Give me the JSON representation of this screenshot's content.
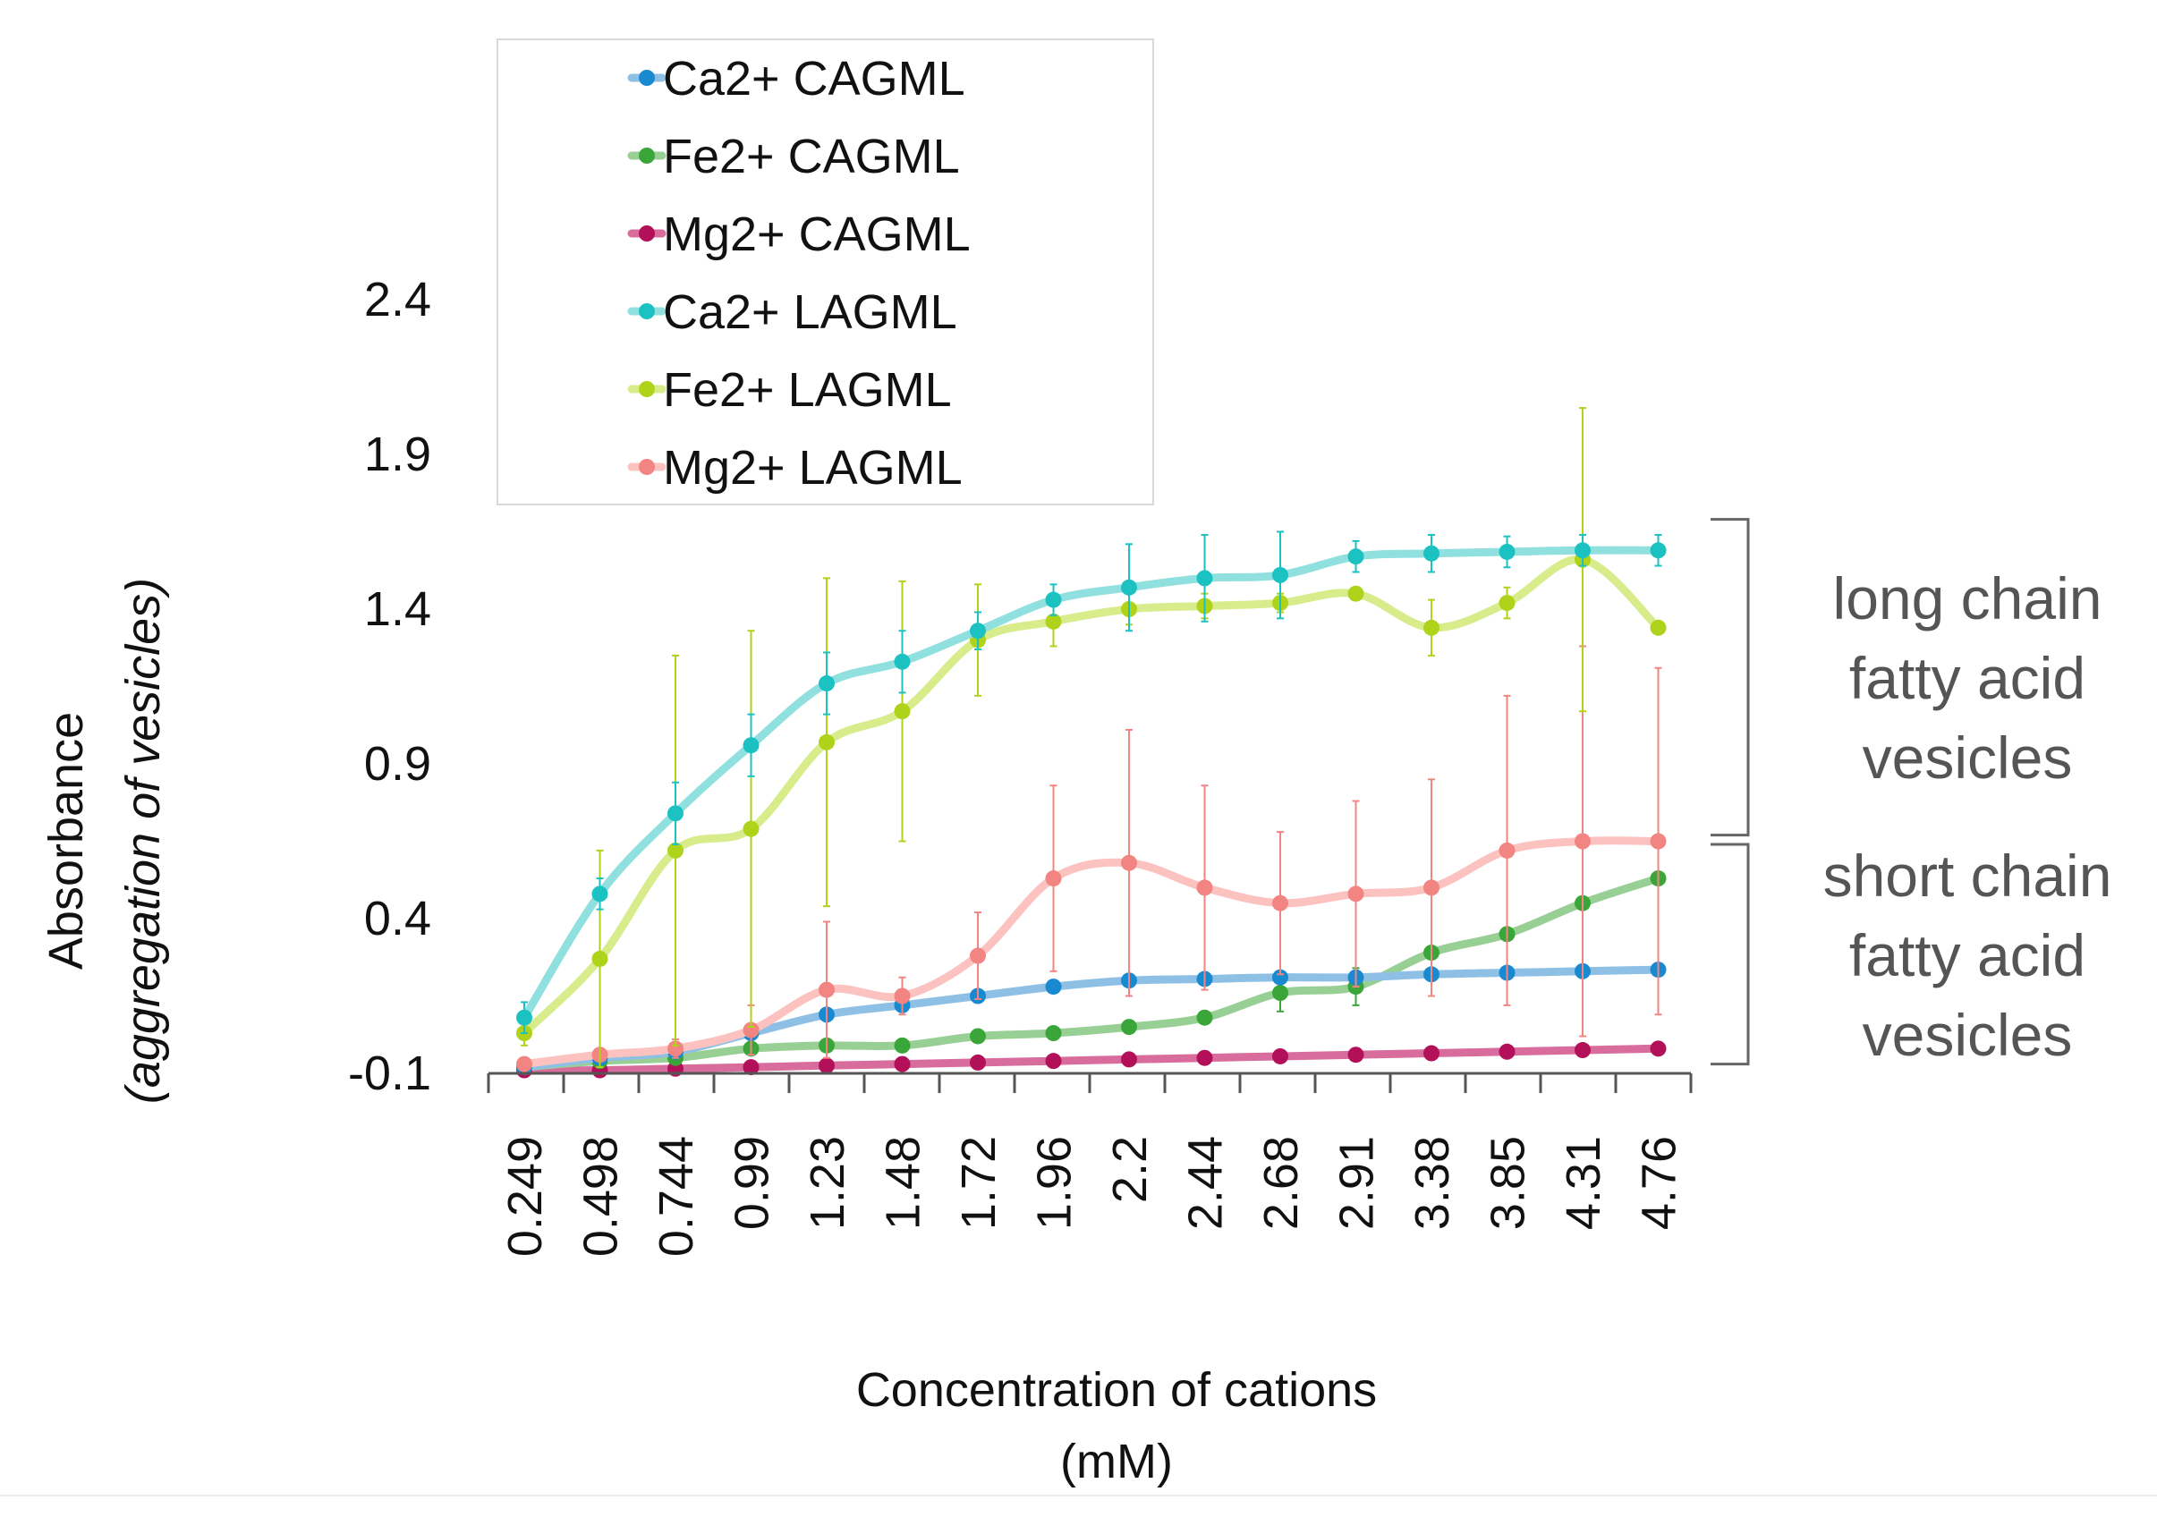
{
  "chart_data": {
    "type": "line",
    "title": "",
    "xlabel_line1": "Concentration of cations",
    "xlabel_line2": "(mM)",
    "ylabel_line1": "Absorbance",
    "ylabel_line2": "(aggregation of vesicles)",
    "ylim": [
      -0.1,
      2.4
    ],
    "yticks": [
      -0.1,
      0.4,
      0.9,
      1.4,
      1.9,
      2.4
    ],
    "ytick_labels": [
      "-0.1",
      "0.4",
      "0.9",
      "1.4",
      "1.9",
      "2.4"
    ],
    "categories": [
      "0.249",
      "0.498",
      "0.744",
      "0.99",
      "1.23",
      "1.48",
      "1.72",
      "1.96",
      "2.2",
      "2.44",
      "2.68",
      "2.91",
      "3.38",
      "3.85",
      "4.31",
      "4.76"
    ],
    "legend_position": "top-left",
    "series": [
      {
        "name": "Ca2+ CAGML",
        "color": "#1a8ad0",
        "line_color": "#8ec0e6",
        "values": [
          -0.08,
          -0.05,
          -0.03,
          0.03,
          0.09,
          0.12,
          0.15,
          0.18,
          0.2,
          0.205,
          0.21,
          0.21,
          0.22,
          0.225,
          0.23,
          0.235
        ],
        "errors": [
          0.005,
          0.005,
          0.005,
          0.01,
          0.01,
          0.01,
          0.01,
          0.01,
          0.01,
          0.01,
          0.01,
          0.01,
          0.01,
          0.01,
          0.01,
          0.01
        ]
      },
      {
        "name": "Fe2+ CAGML",
        "color": "#3aa63a",
        "line_color": "#98cf94",
        "values": [
          -0.08,
          -0.06,
          -0.05,
          -0.02,
          -0.01,
          -0.01,
          0.02,
          0.03,
          0.05,
          0.08,
          0.16,
          0.18,
          0.29,
          0.35,
          0.45,
          0.53
        ],
        "errors": [
          0.005,
          0.005,
          0.005,
          0.01,
          0.01,
          0.01,
          0.01,
          0.01,
          0.01,
          0.01,
          0.06,
          0.06,
          0.01,
          0.01,
          0.01,
          0.01
        ]
      },
      {
        "name": "Mg2+ CAGML",
        "color": "#b3105a",
        "line_color": "#d86c9c",
        "values": [
          -0.09,
          -0.09,
          -0.085,
          -0.08,
          -0.075,
          -0.07,
          -0.065,
          -0.06,
          -0.055,
          -0.05,
          -0.045,
          -0.04,
          -0.035,
          -0.03,
          -0.025,
          -0.02
        ],
        "errors": [
          0.004,
          0.004,
          0.004,
          0.004,
          0.004,
          0.004,
          0.004,
          0.004,
          0.004,
          0.004,
          0.004,
          0.004,
          0.004,
          0.004,
          0.004,
          0.004
        ]
      },
      {
        "name": "Ca2+ LAGML",
        "color": "#1cc2c2",
        "line_color": "#8fe0de",
        "values": [
          0.08,
          0.48,
          0.74,
          0.96,
          1.16,
          1.23,
          1.33,
          1.43,
          1.47,
          1.5,
          1.51,
          1.57,
          1.58,
          1.585,
          1.59,
          1.59
        ],
        "errors": [
          0.05,
          0.05,
          0.1,
          0.1,
          0.1,
          0.1,
          0.06,
          0.05,
          0.14,
          0.14,
          0.14,
          0.05,
          0.06,
          0.05,
          0.05,
          0.05
        ]
      },
      {
        "name": "Fe2+ LAGML",
        "color": "#aed31a",
        "line_color": "#d9ec8c",
        "values": [
          0.03,
          0.27,
          0.62,
          0.69,
          0.97,
          1.07,
          1.3,
          1.36,
          1.4,
          1.41,
          1.42,
          1.45,
          1.34,
          1.42,
          1.56,
          1.34
        ],
        "errors": [
          0.04,
          0.35,
          0.63,
          0.64,
          0.53,
          0.42,
          0.18,
          0.08,
          0.05,
          0.04,
          0.03,
          0.01,
          0.09,
          0.05,
          0.49,
          0.02
        ]
      },
      {
        "name": "Mg2+ LAGML",
        "color": "#f28582",
        "line_color": "#fbc2c0",
        "values": [
          -0.07,
          -0.04,
          -0.02,
          0.04,
          0.17,
          0.15,
          0.28,
          0.53,
          0.58,
          0.5,
          0.45,
          0.48,
          0.5,
          0.62,
          0.65,
          0.65
        ],
        "errors": [
          0.01,
          0.01,
          0.03,
          0.08,
          0.22,
          0.06,
          0.14,
          0.3,
          0.43,
          0.33,
          0.23,
          0.3,
          0.35,
          0.5,
          0.63,
          0.56
        ]
      }
    ],
    "annotations": [
      {
        "lines": [
          "long chain",
          "fatty acid",
          "vesicles"
        ],
        "y_range": [
          0.67,
          1.69
        ]
      },
      {
        "lines": [
          "short chain",
          "fatty acid",
          "vesicles"
        ],
        "y_range": [
          -0.07,
          0.64
        ]
      }
    ]
  }
}
